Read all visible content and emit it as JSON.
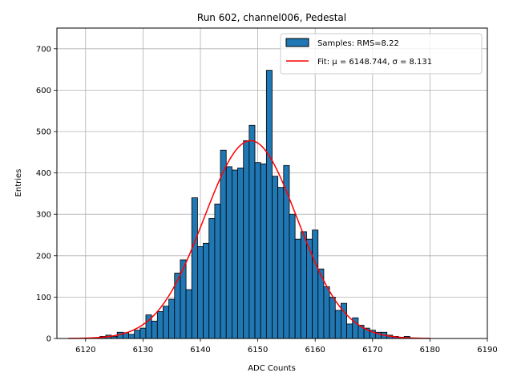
{
  "chart_data": {
    "type": "bar",
    "title": "Run 602, channel006, Pedestal",
    "xlabel": "ADC Counts",
    "ylabel": "Entries",
    "xlim": [
      6115,
      6190
    ],
    "ylim": [
      0,
      750
    ],
    "xticks": [
      6120,
      6130,
      6140,
      6150,
      6160,
      6170,
      6180,
      6190
    ],
    "yticks": [
      0,
      100,
      200,
      300,
      400,
      500,
      600,
      700
    ],
    "grid": true,
    "legend_position": "top-right",
    "colors": {
      "bar": "#1f77b4",
      "bar_edge": "#000000",
      "fit": "#ff0000"
    },
    "histogram": {
      "name": "Samples: RMS=8.22",
      "x": [
        6123,
        6124,
        6125,
        6126,
        6127,
        6128,
        6129,
        6130,
        6131,
        6132,
        6133,
        6134,
        6135,
        6136,
        6137,
        6138,
        6139,
        6140,
        6141,
        6142,
        6143,
        6144,
        6145,
        6146,
        6147,
        6148,
        6149,
        6150,
        6151,
        6152,
        6153,
        6154,
        6155,
        6156,
        6157,
        6158,
        6159,
        6160,
        6161,
        6162,
        6163,
        6164,
        6165,
        6166,
        6167,
        6168,
        6169,
        6170,
        6171,
        6172,
        6173,
        6174,
        6175,
        6176
      ],
      "values": [
        5,
        8,
        5,
        15,
        14,
        10,
        20,
        25,
        57,
        42,
        65,
        78,
        95,
        158,
        190,
        118,
        340,
        222,
        230,
        290,
        325,
        455,
        415,
        407,
        412,
        478,
        515,
        425,
        422,
        648,
        392,
        365,
        418,
        300,
        240,
        258,
        240,
        262,
        168,
        125,
        100,
        68,
        85,
        35,
        50,
        32,
        25,
        20,
        15,
        15,
        8,
        5,
        3,
        5
      ]
    },
    "fit": {
      "name": "Fit: μ = 6148.744, σ = 8.131",
      "mu": 6148.744,
      "sigma": 8.131,
      "amplitude": 478,
      "x_range": [
        6117,
        6180
      ]
    }
  }
}
